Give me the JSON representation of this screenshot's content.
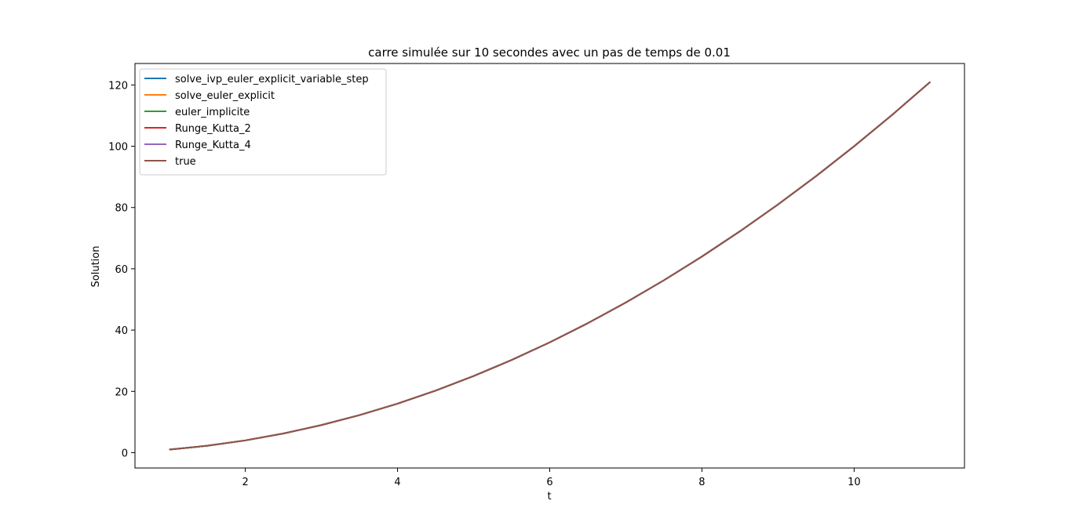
{
  "chart_data": {
    "type": "line",
    "title": "carre simulée sur 10 secondes avec un pas de temps de 0.01",
    "xlabel": "t",
    "ylabel": "Solution",
    "xlim": [
      0.55,
      11.45
    ],
    "ylim": [
      -5,
      127
    ],
    "x_ticks": [
      2,
      4,
      6,
      8,
      10
    ],
    "y_ticks": [
      0,
      20,
      40,
      60,
      80,
      100,
      120
    ],
    "grid": false,
    "legend_position": "upper-left",
    "x": [
      1,
      1.5,
      2,
      2.5,
      3,
      3.5,
      4,
      4.5,
      5,
      5.5,
      6,
      6.5,
      7,
      7.5,
      8,
      8.5,
      9,
      9.5,
      10,
      10.5,
      11
    ],
    "series": [
      {
        "name": "solve_ivp_euler_explicit_variable_step",
        "color": "#1f77b4",
        "values": [
          1,
          2.25,
          4,
          6.25,
          9,
          12.25,
          16,
          20.25,
          25,
          30.25,
          36,
          42.25,
          49,
          56.25,
          64,
          72.25,
          81,
          90.25,
          100,
          110.25,
          121
        ]
      },
      {
        "name": "solve_euler_explicit",
        "color": "#ff7f0e",
        "values": [
          1,
          2.25,
          4,
          6.25,
          9,
          12.25,
          16,
          20.25,
          25,
          30.25,
          36,
          42.25,
          49,
          56.25,
          64,
          72.25,
          81,
          90.25,
          100,
          110.25,
          121
        ]
      },
      {
        "name": "euler_implicite",
        "color": "#2ca02c",
        "values": [
          1,
          2.25,
          4,
          6.25,
          9,
          12.25,
          16,
          20.25,
          25,
          30.25,
          36,
          42.25,
          49,
          56.25,
          64,
          72.25,
          81,
          90.25,
          100,
          110.25,
          121
        ]
      },
      {
        "name": "Runge_Kutta_2",
        "color": "#d62728",
        "values": [
          1,
          2.25,
          4,
          6.25,
          9,
          12.25,
          16,
          20.25,
          25,
          30.25,
          36,
          42.25,
          49,
          56.25,
          64,
          72.25,
          81,
          90.25,
          100,
          110.25,
          121
        ]
      },
      {
        "name": "Runge_Kutta_4",
        "color": "#9467bd",
        "values": [
          1,
          2.25,
          4,
          6.25,
          9,
          12.25,
          16,
          20.25,
          25,
          30.25,
          36,
          42.25,
          49,
          56.25,
          64,
          72.25,
          81,
          90.25,
          100,
          110.25,
          121
        ]
      },
      {
        "name": "true",
        "color": "#8c564b",
        "values": [
          1,
          2.25,
          4,
          6.25,
          9,
          12.25,
          16,
          20.25,
          25,
          30.25,
          36,
          42.25,
          49,
          56.25,
          64,
          72.25,
          81,
          90.25,
          100,
          110.25,
          121
        ]
      }
    ]
  }
}
